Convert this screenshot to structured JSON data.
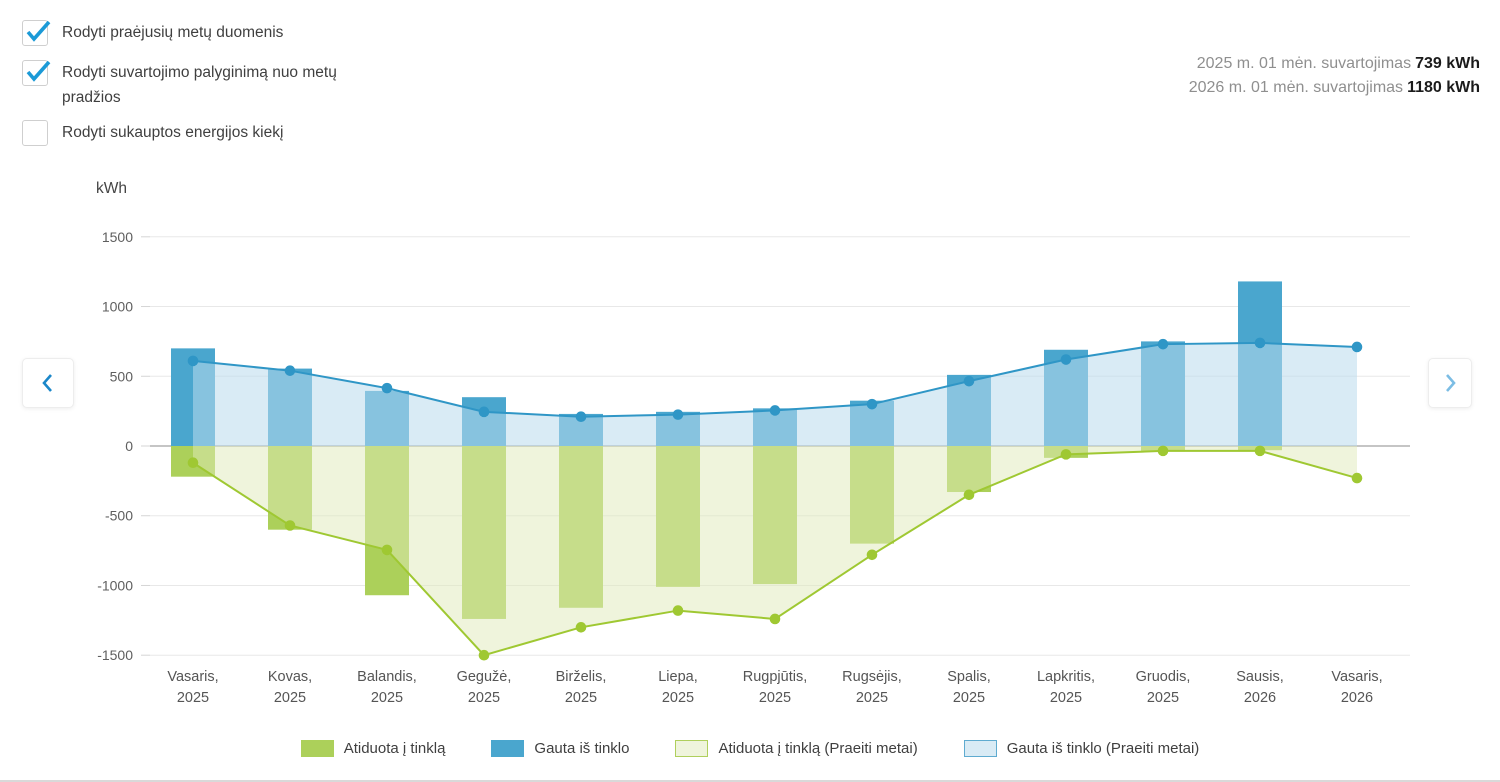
{
  "checkboxes": [
    {
      "label": "Rodyti praėjusių metų duomenis",
      "checked": true
    },
    {
      "label": "Rodyti suvartojimo palyginimą nuo metų pradžios",
      "checked": true
    },
    {
      "label": "Rodyti sukauptos energijos kiekį",
      "checked": false
    }
  ],
  "summary": [
    {
      "prefix": "2025 m. 01 mėn. suvartojimas",
      "value": "739 kWh"
    },
    {
      "prefix": "2026 m. 01 mėn. suvartojimas",
      "value": "1180 kWh"
    }
  ],
  "nav": {
    "prev": "prev-period",
    "next": "next-period"
  },
  "chart_data": {
    "type": "bar",
    "unit_label": "kWh",
    "ylim": [
      -1500,
      1500
    ],
    "yticks": [
      1500,
      1000,
      500,
      0,
      -500,
      -1000,
      -1500
    ],
    "grid": true,
    "legend_position": "bottom",
    "categories": [
      {
        "month": "Vasaris,",
        "year": "2025"
      },
      {
        "month": "Kovas,",
        "year": "2025"
      },
      {
        "month": "Balandis,",
        "year": "2025"
      },
      {
        "month": "Gegužė,",
        "year": "2025"
      },
      {
        "month": "Birželis,",
        "year": "2025"
      },
      {
        "month": "Liepa,",
        "year": "2025"
      },
      {
        "month": "Rugpjūtis,",
        "year": "2025"
      },
      {
        "month": "Rugsėjis,",
        "year": "2025"
      },
      {
        "month": "Spalis,",
        "year": "2025"
      },
      {
        "month": "Lapkritis,",
        "year": "2025"
      },
      {
        "month": "Gruodis,",
        "year": "2025"
      },
      {
        "month": "Sausis,",
        "year": "2026"
      },
      {
        "month": "Vasaris,",
        "year": "2026"
      }
    ],
    "series": [
      {
        "name": "Atiduota į tinklą",
        "type": "bar",
        "color": "#acd05a",
        "values": [
          -220,
          -600,
          -1070,
          -1240,
          -1160,
          -1010,
          -990,
          -700,
          -330,
          -85,
          -40,
          -30,
          null
        ]
      },
      {
        "name": "Gauta iš tinklo",
        "type": "bar",
        "color": "#4aa6ce",
        "values": [
          700,
          555,
          395,
          350,
          230,
          245,
          270,
          325,
          510,
          690,
          750,
          1180,
          null
        ]
      },
      {
        "name": "Atiduota į tinklą (Praeiti metai)",
        "type": "area-line",
        "color": "#9fc832",
        "fill": "rgba(223,233,185,0.5)",
        "values": [
          -120,
          -570,
          -745,
          -1500,
          -1300,
          -1180,
          -1240,
          -780,
          -350,
          -60,
          -35,
          -35,
          -230
        ]
      },
      {
        "name": "Gauta iš tinklo (Praeiti metai)",
        "type": "area-line",
        "color": "#2f96c6",
        "fill": "rgba(186,219,237,0.55)",
        "values": [
          610,
          540,
          415,
          245,
          210,
          225,
          255,
          300,
          465,
          620,
          730,
          739,
          710
        ]
      }
    ]
  },
  "legend": [
    {
      "label": "Atiduota į tinklą"
    },
    {
      "label": "Gauta iš tinklo"
    },
    {
      "label": "Atiduota į tinklą (Praeiti metai)"
    },
    {
      "label": "Gauta iš tinklo (Praeiti metai)"
    }
  ]
}
